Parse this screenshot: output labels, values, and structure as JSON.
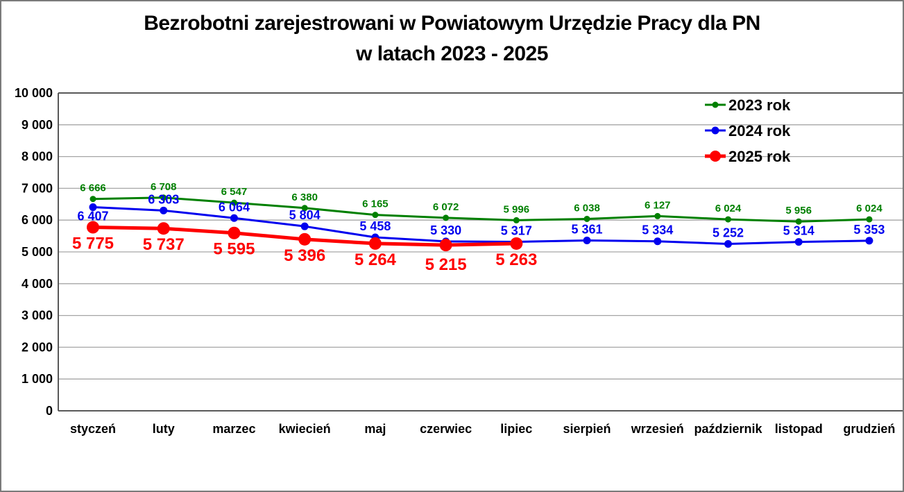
{
  "title": {
    "line1": "Bezrobotni zarejestrowani w Powiatowym Urzędzie Pracy dla PN",
    "line2": "w latach 2023 - 2025"
  },
  "colors": {
    "series_2023": "#008000",
    "series_2024": "#0000ee",
    "series_2025": "#fe0000",
    "grid": "#a6a6a6",
    "axis": "#595959",
    "text": "#000000",
    "frame_border": "#7a7a7a",
    "background": "#ffffff"
  },
  "chart_data": {
    "type": "line",
    "title": "Bezrobotni zarejestrowani w Powiatowym Urzędzie Pracy dla PN w latach 2023 - 2025",
    "categories": [
      "styczeń",
      "luty",
      "marzec",
      "kwiecień",
      "maj",
      "czerwiec",
      "lipiec",
      "sierpień",
      "wrzesień",
      "październik",
      "listopad",
      "grudzień"
    ],
    "xlabel": "",
    "ylabel": "",
    "ylim": [
      0,
      10000
    ],
    "ytick_step": 1000,
    "ytick_labels": [
      "0",
      "1 000",
      "2 000",
      "3 000",
      "4 000",
      "5 000",
      "6 000",
      "7 000",
      "8 000",
      "9 000",
      "10 000"
    ],
    "grid": true,
    "legend_position": "top-right",
    "series": [
      {
        "name": "2023 rok",
        "color": "#008000",
        "values": [
          6666,
          6708,
          6547,
          6380,
          6165,
          6072,
          5996,
          6038,
          6127,
          6024,
          5956,
          6024
        ],
        "labels": [
          "6 666",
          "6 708",
          "6 547",
          "6 380",
          "6 165",
          "6 072",
          "5 996",
          "6 038",
          "6 127",
          "6 024",
          "5 956",
          "6 024"
        ],
        "line_width": 3,
        "marker_r": 4.5,
        "label_font": 15,
        "label_dy": -11,
        "label_dy_overrides": {}
      },
      {
        "name": "2024 rok",
        "color": "#0000ee",
        "values": [
          6407,
          6303,
          6064,
          5804,
          5458,
          5330,
          5317,
          5361,
          5334,
          5252,
          5314,
          5353
        ],
        "labels": [
          "6 407",
          "6 303",
          "6 064",
          "5 804",
          "5 458",
          "5 330",
          "5 317",
          "5 361",
          "5 334",
          "5 252",
          "5 314",
          "5 353"
        ],
        "line_width": 3,
        "marker_r": 5.5,
        "label_font": 18,
        "label_dy": -10,
        "label_dy_overrides": {
          "0": 19
        }
      },
      {
        "name": "2025 rok",
        "color": "#fe0000",
        "values": [
          5775,
          5737,
          5595,
          5396,
          5264,
          5215,
          5263
        ],
        "labels": [
          "5 775",
          "5 737",
          "5 595",
          "5 396",
          "5 264",
          "5 215",
          "5 263"
        ],
        "line_width": 5,
        "marker_r": 9,
        "label_font": 24,
        "label_dy": 31,
        "label_dy_overrides": {
          "5": 36
        }
      }
    ],
    "legend": [
      {
        "label": "2023 rok"
      },
      {
        "label": "2024 rok"
      },
      {
        "label": "2025 rok"
      }
    ]
  }
}
